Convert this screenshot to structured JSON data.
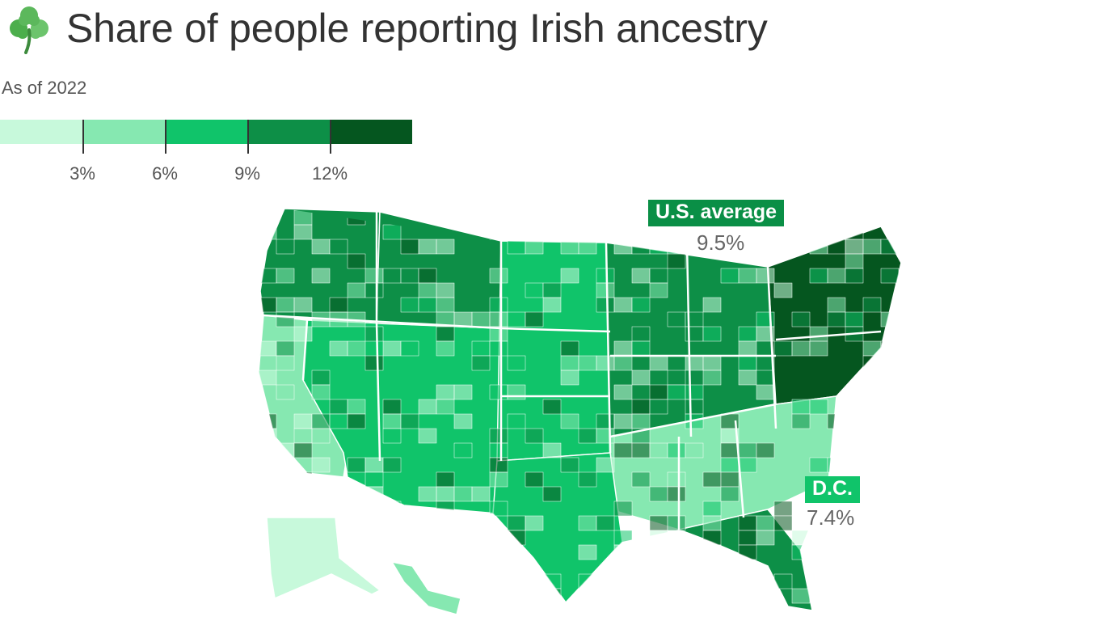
{
  "header": {
    "title": "Share of people reporting Irish ancestry",
    "subtitle": "As of 2022",
    "icon": "shamrock-icon"
  },
  "legend": {
    "colors": [
      "#c7f9db",
      "#86e8b1",
      "#10c46a",
      "#0d8f47",
      "#05561f"
    ],
    "breaks": [
      3,
      6,
      9,
      12
    ],
    "labels": [
      "3%",
      "6%",
      "9%",
      "12%"
    ]
  },
  "callouts": {
    "us_average": {
      "label": "U.S. average",
      "value": "9.5%",
      "color": "#0a8f46"
    },
    "dc": {
      "label": "D.C.",
      "value": "7.4%",
      "color": "#10c46a"
    }
  },
  "map": {
    "region_colors": {
      "pacific_northwest": "#0d8f47",
      "california_coast": "#86e8b1",
      "southwest_desert": "#10c46a",
      "mountain_north": "#0d8f47",
      "great_plains": "#10c46a",
      "midwest": "#0d8f47",
      "northeast": "#05561f",
      "southeast": "#86e8b1",
      "texas": "#10c46a",
      "florida": "#0d8f47",
      "alaska": "#c7f9db",
      "hawaii": "#86e8b1"
    },
    "border_color": "#ffffff"
  }
}
